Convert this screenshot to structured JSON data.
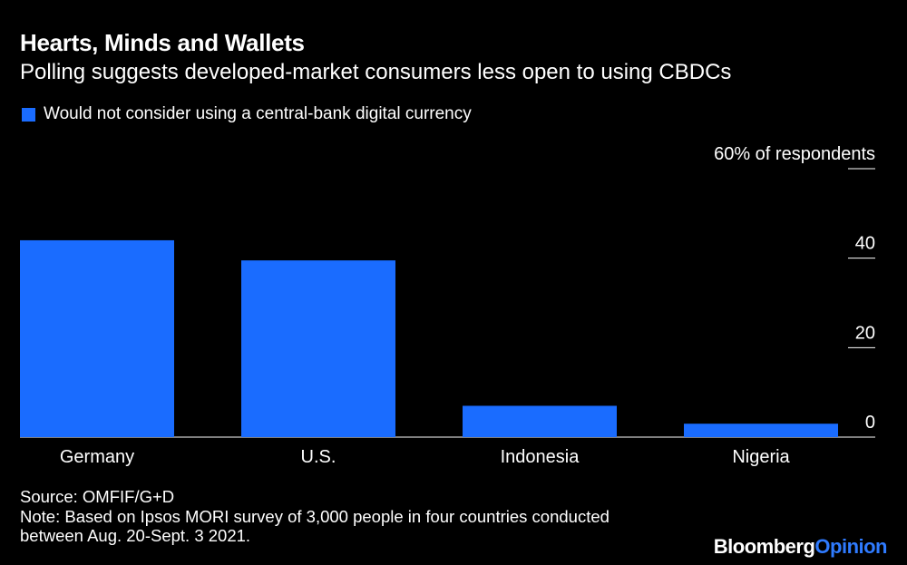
{
  "header": {
    "title": "Hearts, Minds and Wallets",
    "subtitle": "Polling suggests developed-market consumers less open to using CBDCs"
  },
  "chart_data": {
    "type": "bar",
    "categories": [
      "Germany",
      "U.S.",
      "Indonesia",
      "Nigeria"
    ],
    "series": [
      {
        "name": "Would not consider using a central-bank digital currency",
        "values": [
          44,
          39.5,
          7,
          3
        ]
      }
    ],
    "ylim": [
      0,
      60
    ],
    "yticks": [
      0,
      20,
      40,
      60
    ],
    "ytick_labels": [
      "0",
      "20",
      "40",
      "60% of respondents"
    ],
    "bar_color": "#1a6cff",
    "legend_position": "top-left",
    "yaxis_position": "right",
    "grid": false
  },
  "footer": {
    "source": "Source: OMFIF/G+D",
    "note_line1": "Note: Based on Ipsos MORI survey of 3,000 people in four countries conducted",
    "note_line2": "between Aug. 20-Sept. 3 2021.",
    "brand_part1": "Bloomberg",
    "brand_part2": "Opinion"
  }
}
